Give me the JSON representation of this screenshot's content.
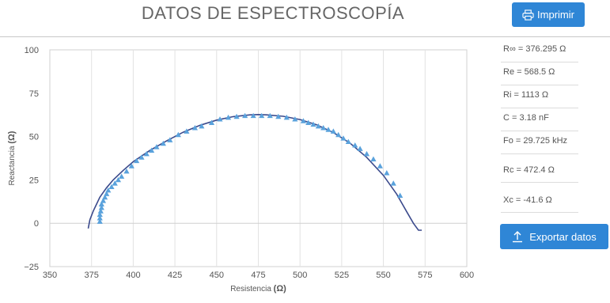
{
  "header": {
    "title": "DATOS DE ESPECTROSCOPÍA",
    "print_label": "Imprimir"
  },
  "parameters": [
    {
      "label": "R∞ = 376.295 Ω"
    },
    {
      "label": "Re = 568.5 Ω"
    },
    {
      "label": "Ri = 1113 Ω"
    },
    {
      "label": "C = 3.18 nF"
    },
    {
      "label": "Fo = 29.725 kHz"
    },
    {
      "label": "Rc = 472.4 Ω"
    },
    {
      "label": "Xc = -41.6 Ω"
    }
  ],
  "export_label": "Exportar datos",
  "icons": {
    "print": "printer-icon",
    "export": "upload-icon"
  },
  "colors": {
    "accent": "#2f86d6",
    "markers": "#5aa2dc",
    "fit_curve": "#3b4a8c"
  },
  "chart_data": {
    "type": "scatter",
    "xlabel": "Resistencia",
    "xlabel_unit": "(Ω)",
    "ylabel": "Reactancia",
    "ylabel_unit": "(Ω)",
    "xlim": [
      350,
      600
    ],
    "ylim": [
      -25,
      100
    ],
    "xticks": [
      350,
      375,
      400,
      425,
      450,
      475,
      500,
      525,
      550,
      575,
      600
    ],
    "yticks": [
      -25,
      0,
      25,
      50,
      75,
      100
    ],
    "grid": "vertical",
    "series": [
      {
        "kind": "markers",
        "marker": "triangle",
        "x": [
          380,
          380,
          380,
          380.5,
          381,
          381,
          382,
          383,
          384,
          385,
          387,
          389,
          391,
          393,
          396,
          399,
          402,
          405,
          408,
          411,
          414,
          418,
          422,
          427,
          432,
          437,
          441,
          447,
          452,
          457,
          462,
          467,
          472,
          477,
          482,
          487,
          492,
          497,
          502,
          505,
          508,
          511,
          514,
          517,
          520,
          523,
          526,
          529,
          533,
          536,
          540,
          544,
          548,
          552,
          556,
          560
        ],
        "y": [
          1,
          3,
          5,
          7,
          9,
          11,
          13,
          15,
          17,
          19,
          21,
          23,
          25,
          27,
          30,
          33,
          36,
          38,
          40,
          42,
          44,
          46,
          48,
          51,
          53,
          55,
          56,
          58,
          60,
          61,
          61.5,
          62,
          62,
          62,
          62,
          61.5,
          61,
          60,
          59,
          58,
          57,
          56,
          55,
          54,
          53,
          51,
          49,
          47,
          45,
          43,
          40,
          37,
          33,
          29,
          23,
          16
        ]
      },
      {
        "kind": "curve",
        "x": [
          373,
          374,
          376,
          378,
          380,
          384,
          388,
          394,
          400,
          410,
          420,
          430,
          440,
          450,
          460,
          470,
          475,
          480,
          490,
          500,
          510,
          520,
          530,
          540,
          550,
          558,
          564,
          568,
          571,
          573
        ],
        "y": [
          -3,
          2,
          7,
          11,
          15,
          20.5,
          25,
          30.5,
          35.5,
          42,
          47.5,
          52.5,
          56.5,
          59.5,
          61.5,
          62.5,
          62.7,
          62.5,
          61.7,
          59.8,
          56.8,
          52.3,
          46.2,
          38,
          27.6,
          16.7,
          6.6,
          0,
          -4,
          -4
        ]
      }
    ]
  }
}
